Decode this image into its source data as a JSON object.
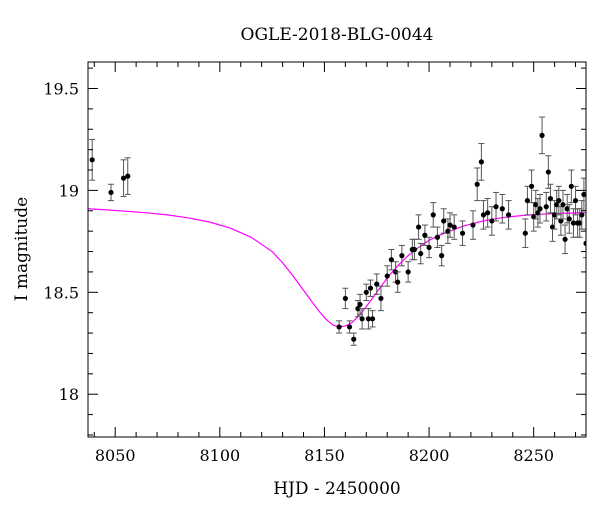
{
  "chart_data": {
    "type": "scatter",
    "title": "OGLE-2018-BLG-0044",
    "xlabel": "HJD - 2450000",
    "ylabel": "I magnitude",
    "xlim": [
      8037,
      8275
    ],
    "ylim": [
      19.63,
      17.79
    ],
    "y_inverted": true,
    "x_ticks": [
      8050,
      8100,
      8150,
      8200,
      8250
    ],
    "y_ticks": [
      18,
      18.5,
      19,
      19.5
    ],
    "x_tick_labels": [
      "8050",
      "8100",
      "8150",
      "8200",
      "8250"
    ],
    "y_tick_labels": [
      "18",
      "18.5",
      "19",
      "19.5"
    ],
    "grid": false,
    "colors": {
      "points": "#000000",
      "errorbars": "#555555",
      "model": "#ff00ff"
    },
    "model": {
      "name": "",
      "color": "#ff00ff",
      "x": [
        8037,
        8045,
        8055,
        8065,
        8075,
        8085,
        8095,
        8105,
        8115,
        8125,
        8130,
        8135,
        8140,
        8145,
        8148,
        8151,
        8154,
        8157,
        8160,
        8163,
        8166,
        8170,
        8175,
        8180,
        8185,
        8190,
        8195,
        8200,
        8205,
        8210,
        8215,
        8220,
        8225,
        8230,
        8235,
        8240,
        8245,
        8250,
        8255,
        8260,
        8265,
        8270,
        8275
      ],
      "y": [
        18.91,
        18.905,
        18.898,
        18.89,
        18.88,
        18.865,
        18.845,
        18.815,
        18.77,
        18.7,
        18.645,
        18.58,
        18.51,
        18.44,
        18.4,
        18.365,
        18.34,
        18.33,
        18.335,
        18.35,
        18.38,
        18.43,
        18.5,
        18.57,
        18.63,
        18.68,
        18.72,
        18.755,
        18.78,
        18.8,
        18.82,
        18.835,
        18.848,
        18.858,
        18.866,
        18.872,
        18.877,
        18.881,
        18.884,
        18.886,
        18.888,
        18.889,
        18.89
      ]
    },
    "series": [
      {
        "x": [
          8039,
          8048,
          8054,
          8056,
          8157,
          8160,
          8162,
          8164,
          8166,
          8167,
          8168,
          8170,
          8171,
          8172,
          8173,
          8175,
          8177,
          8180,
          8182,
          8184,
          8185,
          8187,
          8190,
          8192,
          8193,
          8195,
          8196,
          8198,
          8200,
          8202,
          8204,
          8206,
          8207,
          8209,
          8210,
          8212,
          8216,
          8221,
          8223,
          8225,
          8226,
          8228,
          8230,
          8232,
          8235,
          8238,
          8246,
          8247,
          8249,
          8250,
          8251,
          8252,
          8253,
          8254,
          8256,
          8257,
          8258,
          8259,
          8260,
          8261,
          8262,
          8263,
          8264,
          8265,
          8266,
          8267,
          8268,
          8269,
          8270,
          8271,
          8272,
          8273,
          8274,
          8275
        ],
        "y": [
          19.15,
          18.99,
          19.06,
          19.07,
          18.33,
          18.47,
          18.33,
          18.27,
          18.42,
          18.44,
          18.37,
          18.5,
          18.37,
          18.52,
          18.37,
          18.54,
          18.47,
          18.58,
          18.66,
          18.6,
          18.55,
          18.68,
          18.6,
          18.71,
          18.71,
          18.82,
          18.69,
          18.78,
          18.72,
          18.88,
          18.77,
          18.68,
          18.85,
          18.8,
          18.83,
          18.82,
          18.79,
          18.83,
          19.03,
          19.14,
          18.88,
          18.89,
          18.85,
          18.92,
          18.91,
          18.88,
          18.79,
          18.95,
          19.02,
          18.87,
          18.93,
          18.89,
          18.91,
          19.27,
          18.92,
          19.09,
          18.96,
          18.82,
          18.88,
          18.93,
          18.95,
          18.85,
          18.93,
          18.76,
          18.91,
          18.86,
          19.02,
          18.84,
          18.95,
          18.84,
          18.84,
          18.88,
          18.98,
          18.74
        ],
        "err": [
          0.1,
          0.04,
          0.09,
          0.09,
          0.03,
          0.05,
          0.03,
          0.03,
          0.04,
          0.05,
          0.05,
          0.04,
          0.05,
          0.04,
          0.04,
          0.05,
          0.06,
          0.05,
          0.05,
          0.05,
          0.05,
          0.05,
          0.05,
          0.05,
          0.05,
          0.06,
          0.05,
          0.05,
          0.05,
          0.06,
          0.05,
          0.05,
          0.06,
          0.06,
          0.06,
          0.06,
          0.06,
          0.07,
          0.08,
          0.09,
          0.07,
          0.07,
          0.07,
          0.07,
          0.07,
          0.07,
          0.07,
          0.07,
          0.08,
          0.07,
          0.07,
          0.07,
          0.07,
          0.09,
          0.07,
          0.08,
          0.07,
          0.07,
          0.07,
          0.07,
          0.07,
          0.07,
          0.07,
          0.07,
          0.07,
          0.07,
          0.08,
          0.07,
          0.07,
          0.07,
          0.07,
          0.07,
          0.08,
          0.07
        ]
      }
    ]
  }
}
